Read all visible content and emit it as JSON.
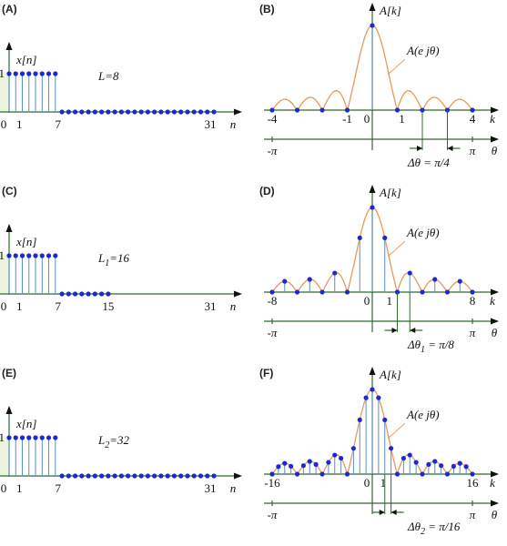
{
  "panels": [
    {
      "id": "A",
      "label": "(A)",
      "kind": "time",
      "ylabel": "x[n]",
      "yval": "1",
      "L": 8,
      "N": 32,
      "len_label": {
        "main": "L",
        "sub": "",
        "eq": "=8"
      },
      "xticks": [
        "0",
        "1",
        "7",
        "31"
      ],
      "xaxis": "n"
    },
    {
      "id": "B",
      "label": "(B)",
      "kind": "freq",
      "L": 8,
      "N": 8,
      "half": 4,
      "ylabel": "A[k]",
      "env_label": "A(e jθ)",
      "kticks": [
        "-4",
        "-1",
        "0",
        "1",
        "4"
      ],
      "kaxis": "k",
      "theta_ticks": [
        "-π",
        "π"
      ],
      "theta_axis": "θ",
      "delta": {
        "main": "Δθ",
        "sub": "",
        "eq": " = π/4"
      }
    },
    {
      "id": "C",
      "label": "(C)",
      "kind": "time",
      "ylabel": "x[n]",
      "yval": "1",
      "L": 8,
      "N": 16,
      "len_label": {
        "main": "L",
        "sub": "1",
        "eq": "=16"
      },
      "xticks": [
        "0",
        "1",
        "7",
        "15",
        "31"
      ],
      "xaxis": "n"
    },
    {
      "id": "D",
      "label": "(D)",
      "kind": "freq",
      "L": 8,
      "N": 16,
      "half": 8,
      "ylabel": "A[k]",
      "env_label": "A(e jθ)",
      "kticks": [
        "-8",
        "0",
        "1",
        "8"
      ],
      "kaxis": "k",
      "theta_ticks": [
        "-π",
        "π"
      ],
      "theta_axis": "θ",
      "delta": {
        "main": "Δθ",
        "sub": "1",
        "eq": " = π/8"
      }
    },
    {
      "id": "E",
      "label": "(E)",
      "kind": "time",
      "ylabel": "x[n]",
      "yval": "1",
      "L": 8,
      "N": 32,
      "len_label": {
        "main": "L",
        "sub": "2",
        "eq": "=32"
      },
      "xticks": [
        "0",
        "1",
        "7",
        "31"
      ],
      "xaxis": "n"
    },
    {
      "id": "F",
      "label": "(F)",
      "kind": "freq",
      "L": 8,
      "N": 32,
      "half": 16,
      "ylabel": "A[k]",
      "env_label": "A(e jθ)",
      "kticks": [
        "-16",
        "0",
        "1",
        "16"
      ],
      "kaxis": "k",
      "theta_ticks": [
        "-π",
        "π"
      ],
      "theta_axis": "θ",
      "delta": {
        "main": "Δθ",
        "sub": "2",
        "eq": " = π/16"
      }
    }
  ]
}
